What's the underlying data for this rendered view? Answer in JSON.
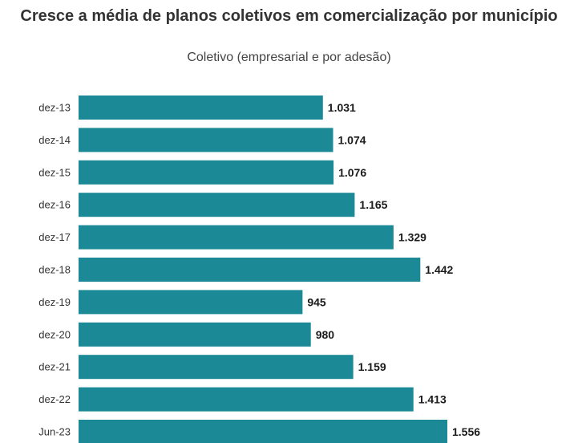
{
  "chart_data": {
    "type": "bar",
    "orientation": "horizontal",
    "title": "Cresce a média de planos coletivos em comercialização por município",
    "subtitle": "Coletivo (empresarial e por adesão)",
    "categories": [
      "dez-13",
      "dez-14",
      "dez-15",
      "dez-16",
      "dez-17",
      "dez-18",
      "dez-19",
      "dez-20",
      "dez-21",
      "dez-22",
      "Jun-23"
    ],
    "values": [
      1031,
      1074,
      1076,
      1165,
      1329,
      1442,
      945,
      980,
      1159,
      1413,
      1556
    ],
    "value_labels": [
      "1.031",
      "1.074",
      "1.076",
      "1.165",
      "1.329",
      "1.442",
      "945",
      "980",
      "1.159",
      "1.413",
      "1.556"
    ],
    "xlim": [
      0,
      1556
    ],
    "bar_color": "#1b8a96",
    "grid": false,
    "legend": "none"
  }
}
